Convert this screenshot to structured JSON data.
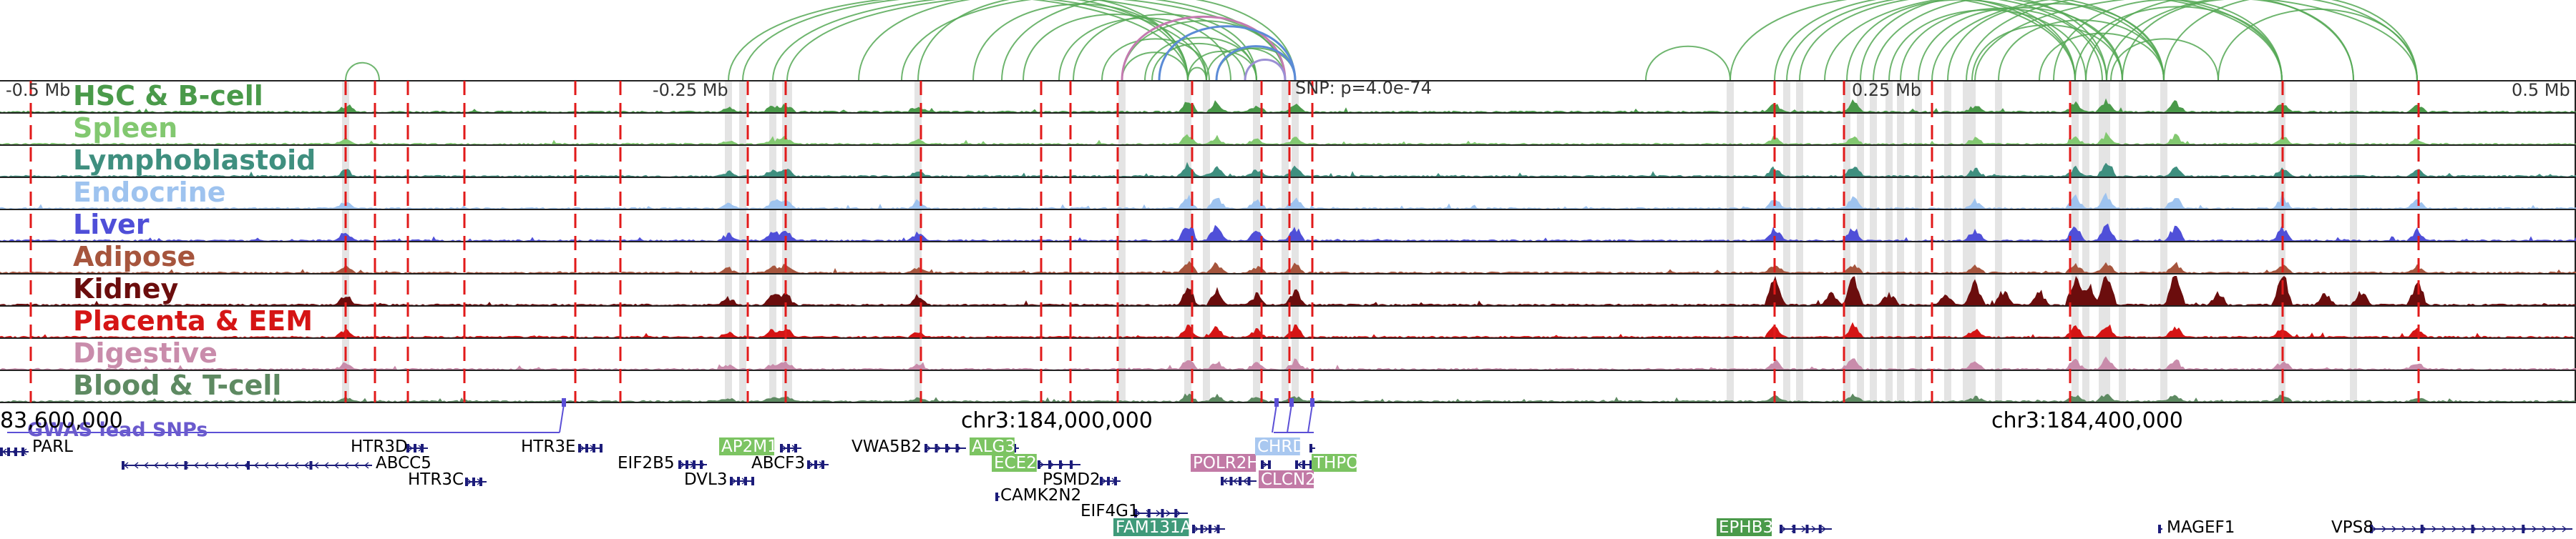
{
  "arc_color": "#55a855",
  "highlight_arc_colors": [
    "#c47ab0",
    "#5b8bd6",
    "#9b8fd4"
  ],
  "tracks": [
    {
      "label": "HSC & B-cell",
      "color": "#4a9a4a"
    },
    {
      "label": "Spleen",
      "color": "#82c870"
    },
    {
      "label": "Lymphoblastoid",
      "color": "#3f8f7f"
    },
    {
      "label": "Endocrine",
      "color": "#9ec3ef"
    },
    {
      "label": "Liver",
      "color": "#4f4fd8"
    },
    {
      "label": "Adipose",
      "color": "#a6553d"
    },
    {
      "label": "Kidney",
      "color": "#6b0d0d"
    },
    {
      "label": "Placenta & EEM",
      "color": "#d51515"
    },
    {
      "label": "Digestive",
      "color": "#c98cab"
    },
    {
      "label": "Blood & T-cell",
      "color": "#5e8a62"
    }
  ],
  "axis_top": {
    "left": "-0.5 Mb",
    "mid_left": "-0.25 Mb",
    "snp": "SNP: p=4.0e-74",
    "mid_right": "0.25 Mb",
    "right": "0.5 Mb"
  },
  "coords": {
    "left": "83,600,000",
    "mid": "chr3:184,000,000",
    "right": "chr3:184,400,000"
  },
  "gwas_label": "GWAS lead SNPs",
  "genes": [
    {
      "name": "PARL",
      "hl": "",
      "strand": "-"
    },
    {
      "name": "ABCC5",
      "hl": "",
      "strand": "-"
    },
    {
      "name": "HTR3D",
      "hl": "",
      "strand": "+"
    },
    {
      "name": "HTR3C",
      "hl": "",
      "strand": "+"
    },
    {
      "name": "HTR3E",
      "hl": "",
      "strand": "+"
    },
    {
      "name": "EIF2B5",
      "hl": "",
      "strand": "+"
    },
    {
      "name": "DVL3",
      "hl": "",
      "strand": "+"
    },
    {
      "name": "AP2M1",
      "hl": "#7cc462",
      "strand": "+"
    },
    {
      "name": "ABCF3",
      "hl": "",
      "strand": "+"
    },
    {
      "name": "VWA5B2",
      "hl": "",
      "strand": "+"
    },
    {
      "name": "ALG3",
      "hl": "#7cc462",
      "strand": "-"
    },
    {
      "name": "ECE2",
      "hl": "#7cc462",
      "strand": "+"
    },
    {
      "name": "PSMD2",
      "hl": "",
      "strand": "+"
    },
    {
      "name": "CAMK2N2",
      "hl": "",
      "strand": "-"
    },
    {
      "name": "EIF4G1",
      "hl": "",
      "strand": "+"
    },
    {
      "name": "FAM131A",
      "hl": "#3f9a7a",
      "strand": "+"
    },
    {
      "name": "POLR2H",
      "hl": "#c27aa6",
      "strand": "+"
    },
    {
      "name": "CHRD",
      "hl": "#a9c8f0",
      "strand": "+"
    },
    {
      "name": "THPO",
      "hl": "#7cc462",
      "strand": "-"
    },
    {
      "name": "CLCN2",
      "hl": "#c27aa6",
      "strand": "-"
    },
    {
      "name": "EPHB3",
      "hl": "#4a9a4a",
      "strand": "+"
    },
    {
      "name": "MAGEF1",
      "hl": "",
      "strand": "-"
    },
    {
      "name": "VPS8",
      "hl": "",
      "strand": "+"
    }
  ]
}
